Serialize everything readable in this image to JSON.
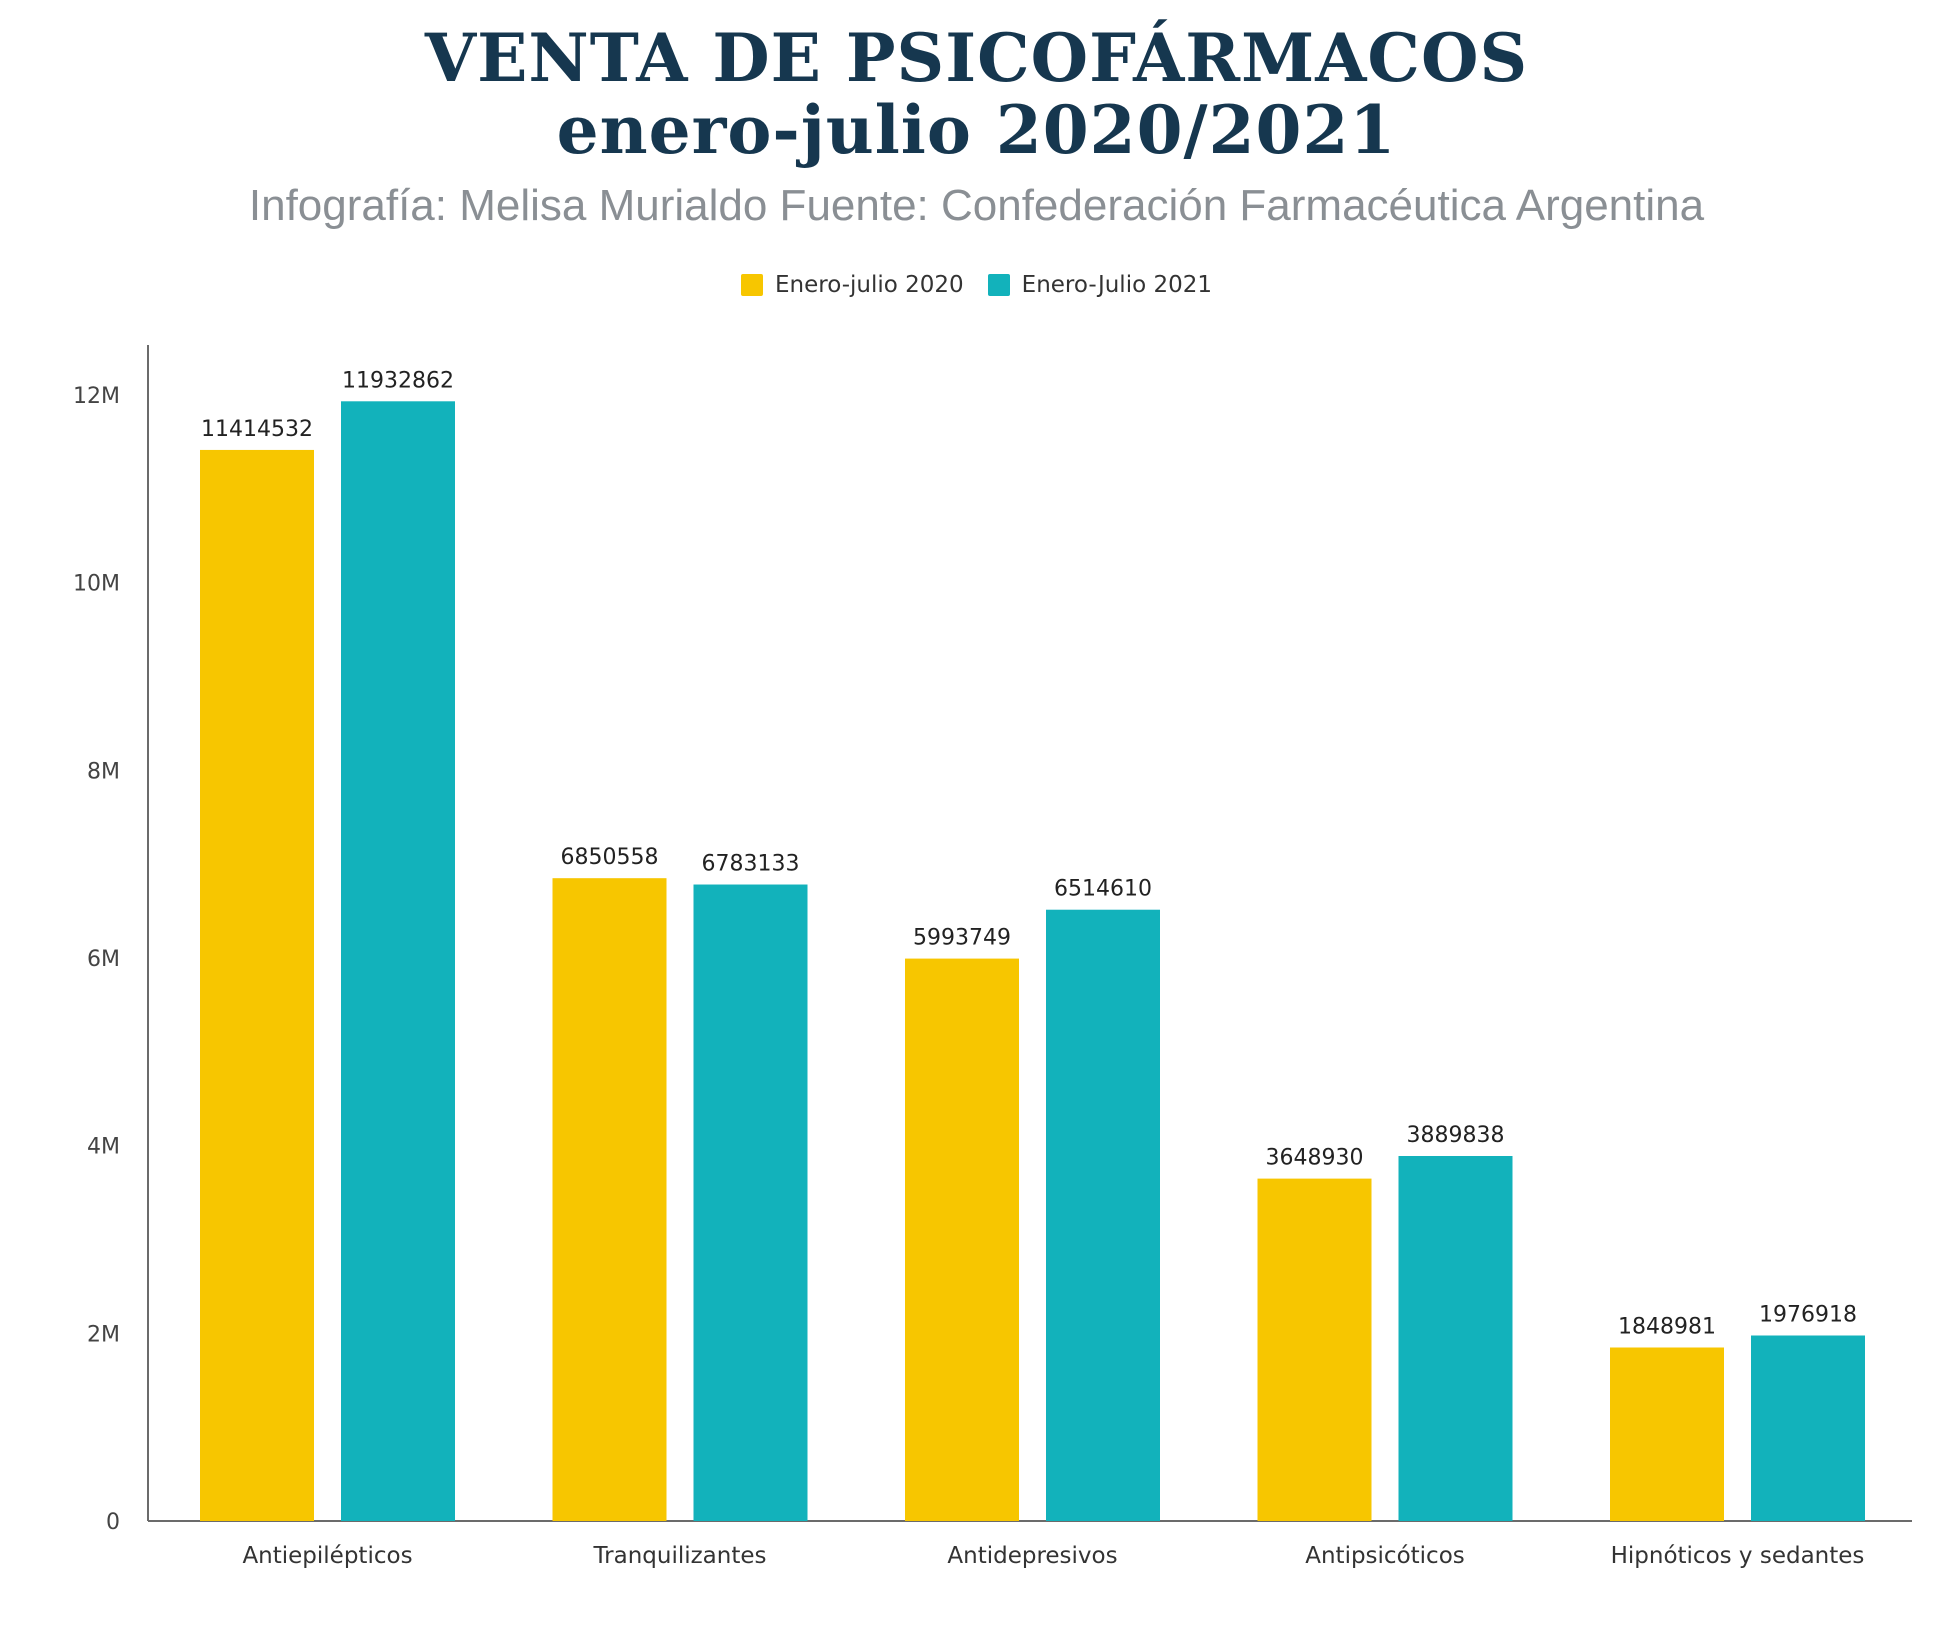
{
  "chart_data": {
    "type": "bar",
    "title_line1": "VENTA DE PSICOFÁRMACOS",
    "title_line2": "enero-julio 2020/2021",
    "subtitle": "Infografía: Melisa Murialdo Fuente: Confederación Farmacéutica Argentina",
    "categories": [
      "Antiepilépticos",
      "Tranquilizantes",
      "Antidepresivos",
      "Antipsicóticos",
      "Hipnóticos y sedantes"
    ],
    "series": [
      {
        "name": "Enero-julio 2020",
        "color": "#f7c600",
        "values": [
          11414532,
          6850558,
          5993749,
          3648930,
          1848981
        ],
        "labels": [
          "11414532",
          "6850558",
          "5993749",
          "3648930",
          "1848981"
        ]
      },
      {
        "name": "Enero-Julio 2021",
        "color": "#12b2bb",
        "values": [
          11932862,
          6783133,
          6514610,
          3889838,
          1976918
        ],
        "labels": [
          "11932862",
          "6783133",
          "6514610",
          "3889838",
          "1976918"
        ]
      }
    ],
    "ylim": [
      0,
      12000000
    ],
    "yticks": [
      0,
      2000000,
      4000000,
      6000000,
      8000000,
      10000000,
      12000000
    ],
    "ytick_labels": [
      "0",
      "2M",
      "4M",
      "6M",
      "8M",
      "10M",
      "12M"
    ],
    "grid": false,
    "legend_position": "top-center"
  }
}
